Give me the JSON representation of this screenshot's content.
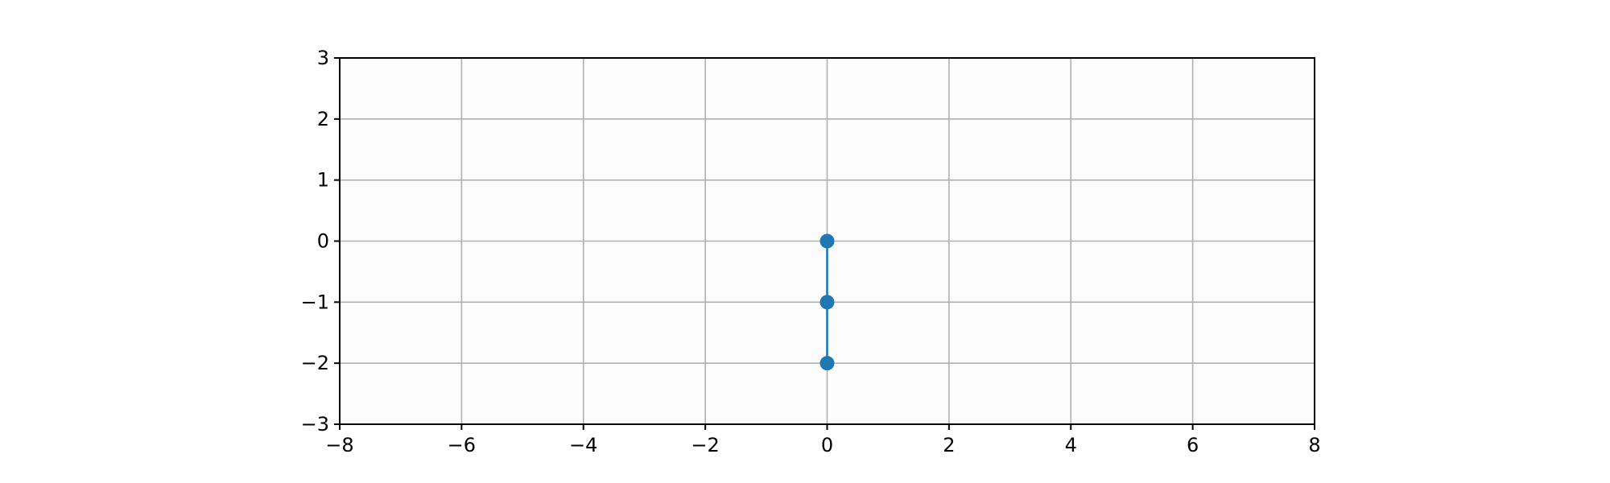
{
  "chart_data": {
    "type": "line",
    "title": "",
    "xlabel": "",
    "ylabel": "",
    "xlim": [
      -8,
      8
    ],
    "ylim": [
      -3,
      3
    ],
    "x_ticks": [
      -8,
      -6,
      -4,
      -2,
      0,
      2,
      4,
      6,
      8
    ],
    "y_ticks": [
      -3,
      -2,
      -1,
      0,
      1,
      2,
      3
    ],
    "x_tick_labels": [
      "−8",
      "−6",
      "−4",
      "−2",
      "0",
      "2",
      "4",
      "6",
      "8"
    ],
    "y_tick_labels": [
      "−3",
      "−2",
      "−1",
      "0",
      "1",
      "2",
      "3"
    ],
    "grid": true,
    "series": [
      {
        "x": [
          0,
          0,
          0
        ],
        "y": [
          0,
          -1,
          -2
        ],
        "marker": "circle",
        "color": "#1f77b4"
      }
    ]
  },
  "colors": {
    "plot_background": "#fcfcfc",
    "grid": "#b0b0b0",
    "axes": "#000000",
    "series": "#1f77b4"
  }
}
